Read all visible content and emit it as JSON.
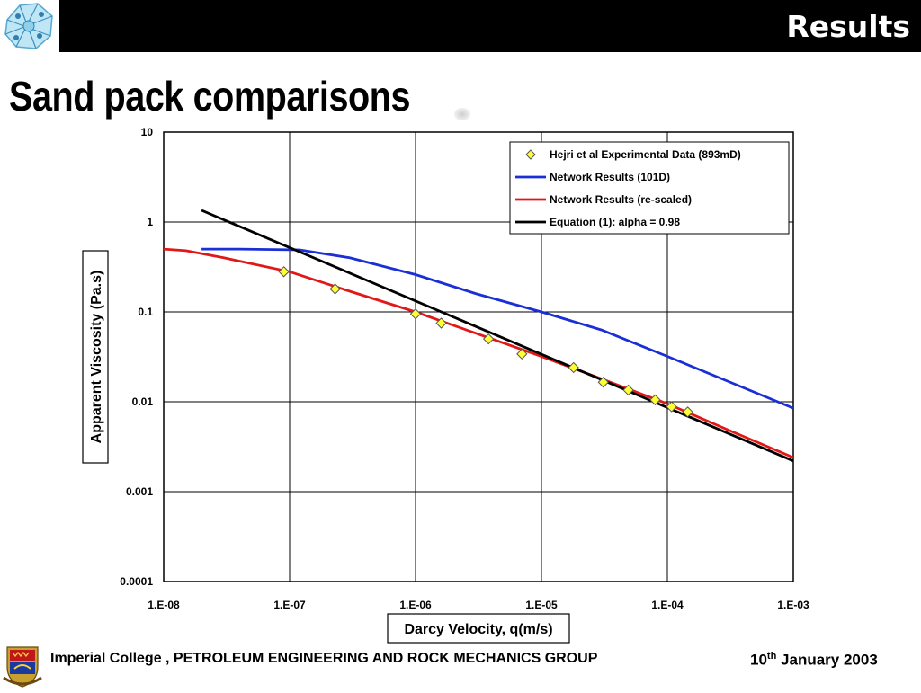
{
  "header": {
    "title": "Results"
  },
  "page": {
    "title": "Sand pack comparisons"
  },
  "footer": {
    "organization": "Imperial College , PETROLEUM ENGINEERING AND ROCK MECHANICS GROUP",
    "date_day": "10",
    "date_suffix": "th",
    "date_rest": " January 2003"
  },
  "colors": {
    "experimental_marker": "#ffff33",
    "network_results": "#1a2fd6",
    "network_rescaled": "#e01818",
    "equation": "#000000"
  },
  "chart_data": {
    "type": "line",
    "xlabel": "Darcy Velocity, q(m/s)",
    "ylabel": "Apparent Viscosity (Pa.s)",
    "x_scale": "log",
    "y_scale": "log",
    "xlim": [
      1e-08,
      0.001
    ],
    "ylim": [
      0.0001,
      10
    ],
    "x_ticks": [
      1e-08,
      1e-07,
      1e-06,
      1e-05,
      0.0001,
      0.001
    ],
    "x_tick_labels": [
      "1.E-08",
      "1.E-07",
      "1.E-06",
      "1.E-05",
      "1.E-04",
      "1.E-03"
    ],
    "y_ticks": [
      0.0001,
      0.001,
      0.01,
      0.1,
      1,
      10
    ],
    "y_tick_labels": [
      "0.0001",
      "0.001",
      "0.01",
      "0.1",
      "1",
      "10"
    ],
    "grid": true,
    "legend_position": "top-right",
    "series": [
      {
        "name": "Hejri et al Experimental Data (893mD)",
        "kind": "scatter",
        "x": [
          9e-08,
          2.3e-07,
          1e-06,
          1.6e-06,
          3.8e-06,
          7e-06,
          1.8e-05,
          3.1e-05,
          4.9e-05,
          8e-05,
          0.000108,
          0.000145
        ],
        "y": [
          0.28,
          0.18,
          0.095,
          0.075,
          0.05,
          0.034,
          0.024,
          0.0165,
          0.0135,
          0.0105,
          0.0088,
          0.0077
        ]
      },
      {
        "name": "Network Results (101D)",
        "kind": "line",
        "x": [
          2e-08,
          4e-08,
          1.2e-07,
          3e-07,
          1e-06,
          3e-06,
          1e-05,
          3e-05,
          0.0001,
          0.0003,
          0.001
        ],
        "y": [
          0.5,
          0.5,
          0.49,
          0.4,
          0.26,
          0.16,
          0.1,
          0.063,
          0.032,
          0.017,
          0.0085
        ]
      },
      {
        "name": "Network Results (re-scaled)",
        "kind": "line",
        "x": [
          1e-08,
          1.5e-08,
          3e-08,
          1e-07,
          3e-07,
          1e-06,
          3e-06,
          1e-05,
          3e-05,
          0.0001,
          0.0003,
          0.001
        ],
        "y": [
          0.5,
          0.48,
          0.4,
          0.28,
          0.17,
          0.1,
          0.058,
          0.032,
          0.018,
          0.0095,
          0.0049,
          0.0024
        ]
      },
      {
        "name": "Equation (1): alpha = 0.98",
        "kind": "line",
        "x": [
          2e-08,
          0.001
        ],
        "y": [
          1.35,
          0.0022
        ]
      }
    ]
  }
}
